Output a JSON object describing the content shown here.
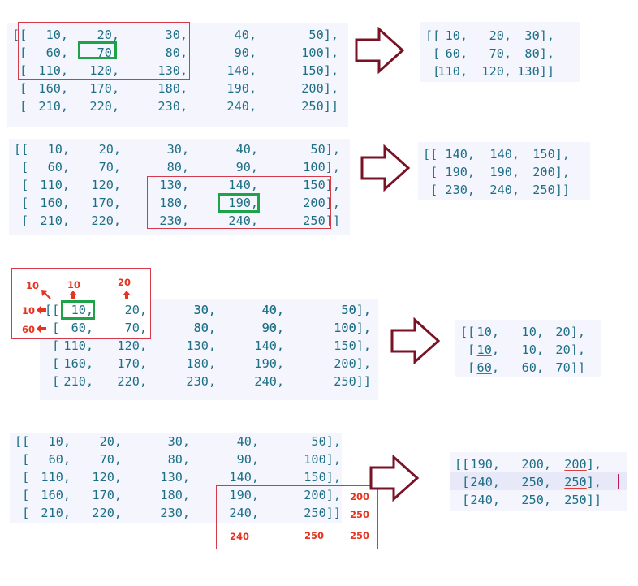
{
  "panels": [
    {
      "id": "example1-input",
      "rows": [
        [
          "[[",
          "10,",
          "20,",
          "30,",
          "40,",
          "50],"
        ],
        [
          " [",
          "60,",
          "70,",
          "80,",
          "90,",
          "100],"
        ],
        [
          " [",
          "110,",
          "120,",
          "130,",
          "140,",
          "150],"
        ],
        [
          " [",
          "160,",
          "170,",
          "180,",
          "190,",
          "200],"
        ],
        [
          " [",
          "210,",
          "220,",
          "230,",
          "240,",
          "250]]"
        ]
      ]
    },
    {
      "id": "example1-output",
      "rows": [
        [
          "[[",
          "10,",
          "20,",
          "30],"
        ],
        [
          " [",
          "60,",
          "70,",
          "80],"
        ],
        [
          " [",
          "110,",
          "120,",
          "130]]"
        ]
      ]
    },
    {
      "id": "example2-input",
      "rows": [
        [
          "[[",
          "10,",
          "20,",
          "30,",
          "40,",
          "50],"
        ],
        [
          " [",
          "60,",
          "70,",
          "80,",
          "90,",
          "100],"
        ],
        [
          " [",
          "110,",
          "120,",
          "130,",
          "140,",
          "150],"
        ],
        [
          " [",
          "160,",
          "170,",
          "180,",
          "190,",
          "200],"
        ],
        [
          " [",
          "210,",
          "220,",
          "230,",
          "240,",
          "250]]"
        ]
      ]
    },
    {
      "id": "example2-output",
      "rows": [
        [
          "[[",
          "140,",
          "140,",
          "150],"
        ],
        [
          " [",
          "190,",
          "190,",
          "200],"
        ],
        [
          " [",
          "230,",
          "240,",
          "250]]"
        ]
      ]
    },
    {
      "id": "example3-input",
      "rows": [
        [
          "[[",
          "10,",
          "20,",
          "30,",
          "40,",
          "50],"
        ],
        [
          " [",
          "60,",
          "70,",
          "80,",
          "90,",
          "100],"
        ],
        [
          " [",
          "110,",
          "120,",
          "130,",
          "140,",
          "150],"
        ],
        [
          " [",
          "160,",
          "170,",
          "180,",
          "190,",
          "200],"
        ],
        [
          " [",
          "210,",
          "220,",
          "230,",
          "240,",
          "250]]"
        ]
      ]
    },
    {
      "id": "example3-output",
      "rows": [
        [
          "[[",
          "10,",
          "10,",
          "20],"
        ],
        [
          " [",
          "10,",
          "10,",
          "20],"
        ],
        [
          " [",
          "60,",
          "60,",
          "70]]"
        ]
      ]
    },
    {
      "id": "example4-input",
      "rows": [
        [
          "[[",
          "10,",
          "20,",
          "30,",
          "40,",
          "50],"
        ],
        [
          " [",
          "60,",
          "70,",
          "80,",
          "90,",
          "100],"
        ],
        [
          " [",
          "110,",
          "120,",
          "130,",
          "140,",
          "150],"
        ],
        [
          " [",
          "160,",
          "170,",
          "180,",
          "190,",
          "200],"
        ],
        [
          " [",
          "210,",
          "220,",
          "230,",
          "240,",
          "250]]"
        ]
      ]
    },
    {
      "id": "example4-output",
      "rows": [
        [
          "[[",
          "190,",
          "200,",
          "200],"
        ],
        [
          " [",
          "240,",
          "250,",
          "250],"
        ],
        [
          " [",
          "240,",
          "250,",
          "250]]"
        ]
      ]
    }
  ],
  "annotations": {
    "example3": {
      "top_left": "10",
      "top": "10",
      "top_right": "20",
      "left": "10",
      "bottom_left": "60"
    },
    "example4": {
      "right_1": "200",
      "right_2": "250",
      "bottom_1": "240",
      "bottom_2": "250",
      "bottom_right": "250"
    }
  },
  "colors": {
    "matrix_text": "#1d6f86",
    "panel_bg": "#f4f5fd",
    "red_box": "#d63a4a",
    "green_box": "#1fa34a",
    "arrow": "#7a1226",
    "annotation": "#e53522"
  }
}
